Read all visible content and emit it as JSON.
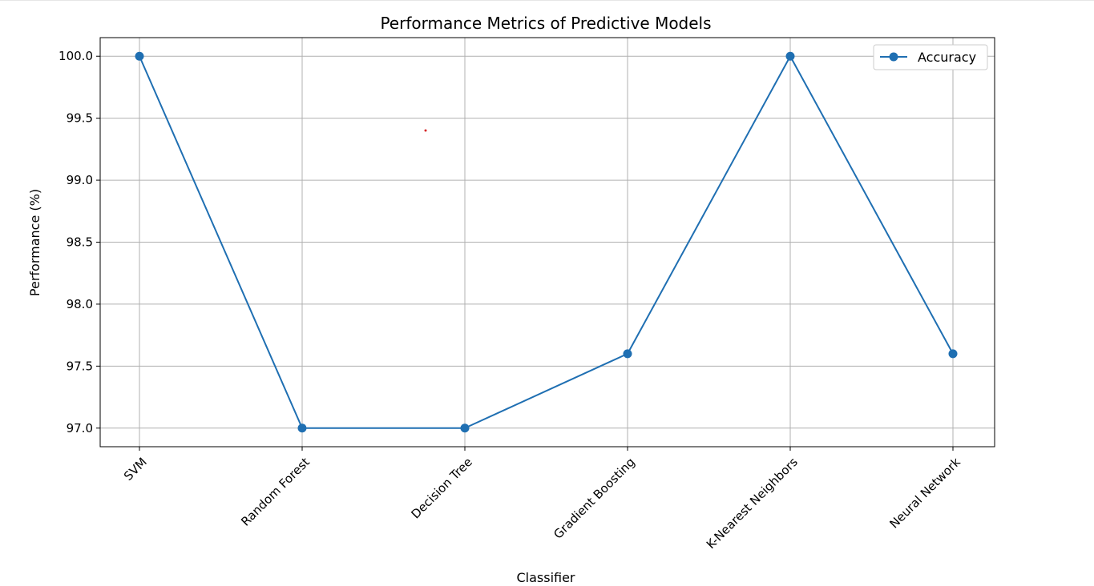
{
  "chart_data": {
    "type": "line",
    "title": "Performance Metrics of Predictive Models",
    "xlabel": "Classifier",
    "ylabel": "Performance (%)",
    "categories": [
      "SVM",
      "Random Forest",
      "Decision Tree",
      "Gradient Boosting",
      "K-Nearest Neighbors",
      "Neural Network"
    ],
    "series": [
      {
        "name": "Accuracy",
        "values": [
          100.0,
          97.0,
          97.0,
          97.6,
          100.0,
          97.6
        ],
        "color": "#1f6fb2"
      }
    ],
    "yticks": [
      "97.0",
      "97.5",
      "98.0",
      "98.5",
      "99.0",
      "99.5",
      "100.0"
    ],
    "ylim": [
      96.85,
      100.15
    ],
    "grid": true,
    "legend_position": "top-right",
    "x_tick_rotation": -45
  }
}
